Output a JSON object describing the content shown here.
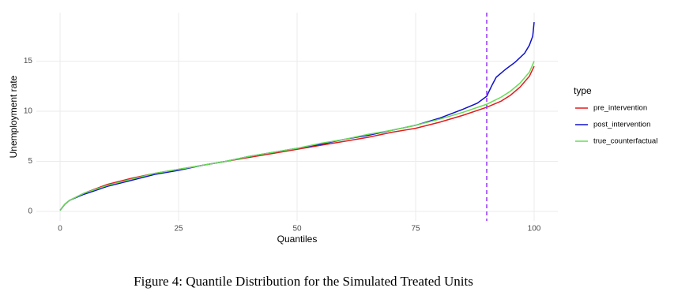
{
  "chart_data": {
    "type": "line",
    "x_label": "Quantiles",
    "y_label": "Unemployment rate",
    "caption": "Figure 4: Quantile Distribution for the Simulated Treated Units",
    "legend_title": "type",
    "legend_position": "right",
    "xlim": [
      -5,
      105
    ],
    "xticks": [
      0,
      25,
      50,
      75,
      100
    ],
    "ylim": [
      -0.95,
      19.85
    ],
    "yticks": [
      0,
      5,
      10,
      15
    ],
    "grid": true,
    "vline": 90,
    "vline_color": "#9933ff",
    "series": [
      {
        "name": "pre_intervention",
        "color": "#e41a1c",
        "x": [
          0,
          1,
          2,
          5,
          10,
          15,
          20,
          25,
          30,
          35,
          40,
          45,
          50,
          55,
          60,
          65,
          70,
          75,
          80,
          85,
          90,
          93,
          95,
          97,
          99,
          100
        ],
        "values": [
          0.1,
          0.7,
          1.1,
          1.8,
          2.7,
          3.3,
          3.8,
          4.2,
          4.6,
          5.0,
          5.4,
          5.8,
          6.2,
          6.6,
          7.0,
          7.4,
          7.9,
          8.3,
          8.9,
          9.6,
          10.4,
          11.0,
          11.6,
          12.4,
          13.5,
          14.5
        ]
      },
      {
        "name": "post_intervention",
        "color": "#1010cc",
        "x": [
          0,
          1,
          2,
          5,
          10,
          15,
          20,
          25,
          30,
          35,
          40,
          45,
          50,
          55,
          60,
          65,
          70,
          75,
          80,
          85,
          88,
          90,
          91,
          92,
          94,
          96,
          98,
          99,
          99.7,
          100
        ],
        "values": [
          0.1,
          0.7,
          1.1,
          1.7,
          2.5,
          3.1,
          3.7,
          4.1,
          4.6,
          5.0,
          5.5,
          5.9,
          6.3,
          6.7,
          7.2,
          7.6,
          8.1,
          8.6,
          9.3,
          10.2,
          10.8,
          11.5,
          12.5,
          13.4,
          14.2,
          14.9,
          15.8,
          16.6,
          17.5,
          18.9
        ]
      },
      {
        "name": "true_counterfactual",
        "color": "#66dd55",
        "x": [
          0,
          1,
          2,
          5,
          10,
          15,
          20,
          25,
          30,
          35,
          40,
          45,
          50,
          55,
          60,
          65,
          70,
          75,
          80,
          85,
          90,
          93,
          95,
          97,
          99,
          100
        ],
        "values": [
          0.1,
          0.7,
          1.1,
          1.8,
          2.6,
          3.2,
          3.8,
          4.2,
          4.6,
          5.0,
          5.5,
          5.9,
          6.3,
          6.8,
          7.2,
          7.7,
          8.1,
          8.6,
          9.2,
          9.9,
          10.7,
          11.4,
          12.0,
          12.8,
          13.9,
          15.0
        ]
      }
    ]
  }
}
